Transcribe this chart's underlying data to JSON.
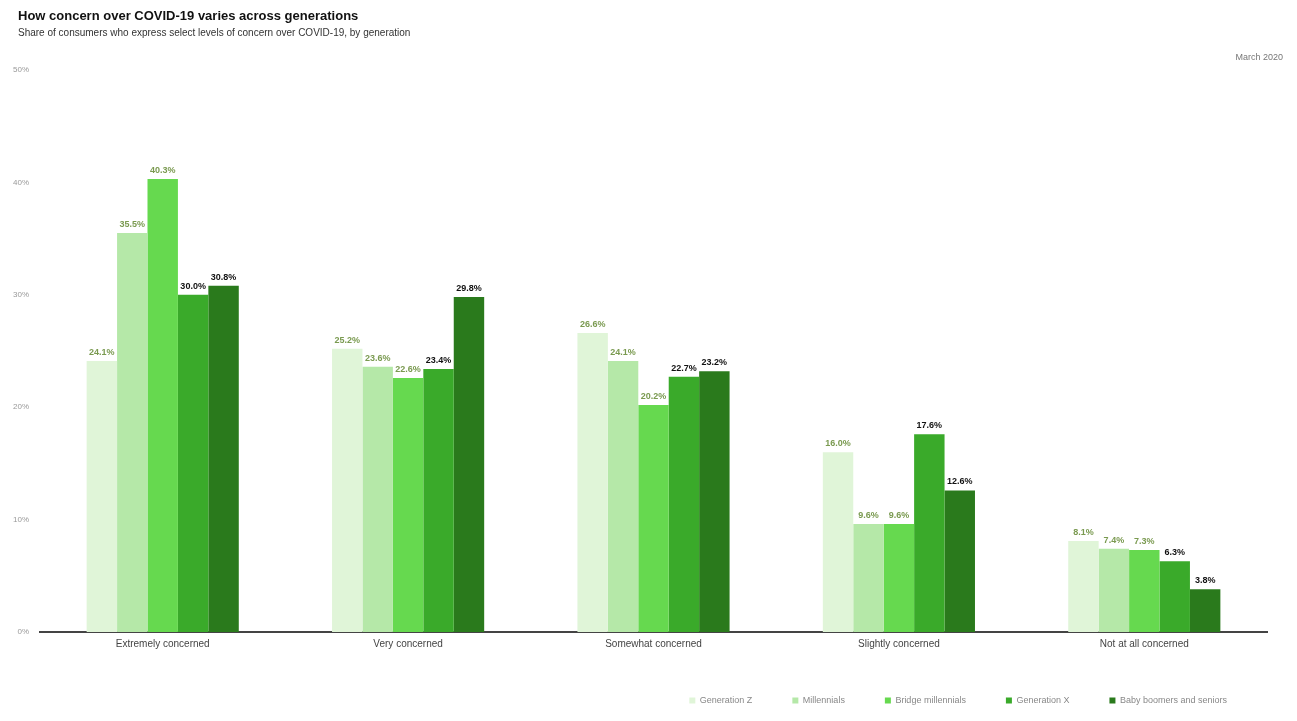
{
  "chart_data": {
    "type": "bar",
    "title": "How concern over COVID-19 varies across generations",
    "subtitle": "Share of consumers who express select levels of concern over COVID-19, by generation",
    "annotations": [
      "March 2020"
    ],
    "categories": [
      "Extremely concerned",
      "Very concerned",
      "Somewhat concerned",
      "Slightly concerned",
      "Not at all concerned"
    ],
    "series": [
      {
        "name": "Generation Z",
        "color": "#e0f5d8",
        "values": [
          24.1,
          25.2,
          26.6,
          16.0,
          8.1
        ],
        "value_labels": [
          "24.1%",
          "25.2%",
          "26.6%",
          "16.0%",
          "8.1%"
        ]
      },
      {
        "name": "Millennials",
        "color": "#b5e8a8",
        "values": [
          35.5,
          23.6,
          24.1,
          9.6,
          7.4
        ],
        "value_labels": [
          "35.5%",
          "23.6%",
          "24.1%",
          "9.6%",
          "7.4%"
        ]
      },
      {
        "name": "Bridge millennials",
        "color": "#66d94f",
        "values": [
          40.3,
          22.6,
          20.2,
          9.6,
          7.3
        ],
        "value_labels": [
          "40.3%",
          "22.6%",
          "20.2%",
          "9.6%",
          "7.3%"
        ]
      },
      {
        "name": "Generation X",
        "color": "#3aaa2a",
        "values": [
          30.0,
          23.4,
          22.7,
          17.6,
          6.3
        ],
        "value_labels": [
          "30.0%",
          "23.4%",
          "22.7%",
          "17.6%",
          "6.3%"
        ]
      },
      {
        "name": "Baby boomers and seniors",
        "color": "#2a7a1c",
        "values": [
          30.8,
          29.8,
          23.2,
          12.6,
          3.8
        ],
        "value_labels": [
          "30.8%",
          "29.8%",
          "23.2%",
          "12.6%",
          "3.8%"
        ]
      }
    ],
    "ylim": [
      0,
      50
    ],
    "yticks": [
      {
        "value": 0,
        "label": "0%"
      },
      {
        "value": 10,
        "label": "10%"
      },
      {
        "value": 20,
        "label": "20%"
      },
      {
        "value": 30,
        "label": "30%"
      },
      {
        "value": 40,
        "label": "40%"
      },
      {
        "value": 50,
        "label": "50%"
      }
    ],
    "grid": false,
    "legend": "bottom right"
  }
}
